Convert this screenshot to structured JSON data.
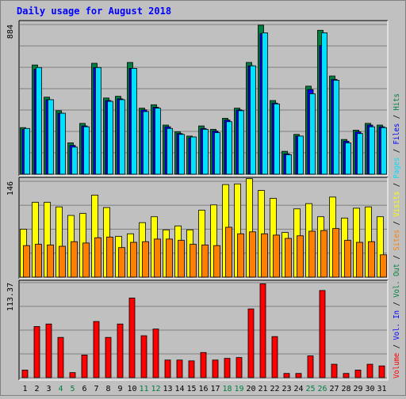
{
  "chart_data": {
    "type": "bar",
    "title": "Daily usage for August 2018",
    "categories": [
      "1",
      "2",
      "3",
      "4",
      "5",
      "6",
      "7",
      "8",
      "9",
      "10",
      "11",
      "12",
      "13",
      "14",
      "15",
      "16",
      "17",
      "18",
      "19",
      "20",
      "21",
      "22",
      "23",
      "24",
      "25",
      "26",
      "27",
      "28",
      "29",
      "30",
      "31"
    ],
    "weekend_days": [
      "4",
      "5",
      "11",
      "12",
      "18",
      "19",
      "25",
      "26"
    ],
    "panels": [
      {
        "id": "top",
        "ymax_label": "884",
        "ymax": 884,
        "series": [
          {
            "name": "Hits",
            "color": "#008040",
            "values": [
              275,
              645,
              455,
              375,
              185,
              300,
              655,
              450,
              460,
              660,
              390,
              410,
              290,
              250,
              225,
              285,
              265,
              330,
              390,
              660,
              880,
              435,
              135,
              235,
              520,
              850,
              580,
              205,
              260,
              300,
              290
            ]
          },
          {
            "name": "Files",
            "color": "#0000ff",
            "values": [
              265,
              620,
              440,
              360,
              170,
              285,
              630,
              435,
              445,
              625,
              380,
              395,
              280,
              240,
              215,
              270,
              255,
              320,
              380,
              640,
              830,
              420,
              120,
              225,
              500,
              760,
              560,
              195,
              250,
              290,
              280
            ]
          },
          {
            "name": "Pages",
            "color": "#00e0ff",
            "values": [
              270,
              630,
              440,
              360,
              160,
              280,
              630,
              430,
              440,
              625,
              370,
              390,
              270,
              235,
              220,
              265,
              245,
              310,
              375,
              640,
              835,
              415,
              115,
              225,
              475,
              835,
              555,
              185,
              240,
              280,
              275
            ]
          }
        ]
      },
      {
        "id": "middle",
        "ymax_label": "146",
        "ymax": 146,
        "series": [
          {
            "name": "Visits",
            "color": "#ffff00",
            "values": [
              73,
              114,
              114,
              107,
              94,
              97,
              125,
              106,
              62,
              66,
              83,
              92,
              72,
              78,
              72,
              102,
              110,
              141,
              142,
              150,
              132,
              120,
              68,
              104,
              112,
              92,
              122,
              90,
              105,
              107,
              92
            ]
          },
          {
            "name": "Sites",
            "color": "#ff8000",
            "values": [
              48,
              50,
              49,
              47,
              54,
              52,
              60,
              61,
              45,
              53,
              54,
              58,
              58,
              56,
              50,
              49,
              48,
              76,
              66,
              69,
              66,
              64,
              59,
              63,
              70,
              71,
              74,
              56,
              53,
              54,
              34
            ]
          }
        ]
      },
      {
        "id": "bottom",
        "ymax_label": "113.37",
        "ymax": 113.37,
        "series": [
          {
            "name": "Volume",
            "color": "#ff0000",
            "values": [
              9,
              61,
              64,
              48,
              6,
              27,
              67,
              48,
              64,
              95,
              50,
              58,
              21,
              21,
              20,
              30,
              21,
              23,
              24,
              82,
              112,
              49,
              5,
              5,
              26,
              104,
              16,
              5,
              9,
              16,
              14
            ]
          }
        ]
      }
    ],
    "side_legend": [
      {
        "text": "Volume",
        "color": "#ff0000"
      },
      {
        "text": " / ",
        "color": "#000000"
      },
      {
        "text": "Vol. In",
        "color": "#0000ff"
      },
      {
        "text": " / ",
        "color": "#000000"
      },
      {
        "text": "Vol. Out",
        "color": "#008040"
      },
      {
        "text": " / ",
        "color": "#000000"
      },
      {
        "text": "Sites",
        "color": "#ff8000"
      },
      {
        "text": " / ",
        "color": "#000000"
      },
      {
        "text": "Visits",
        "color": "#ffff00"
      },
      {
        "text": " / ",
        "color": "#000000"
      },
      {
        "text": "Pages",
        "color": "#00e0ff"
      },
      {
        "text": " / ",
        "color": "#000000"
      },
      {
        "text": "Files",
        "color": "#0000ff"
      },
      {
        "text": " / ",
        "color": "#000000"
      },
      {
        "text": "Hits",
        "color": "#008040"
      }
    ],
    "colors": {
      "title": "#0000ff",
      "weekday_label": "#000000",
      "weekend_label": "#008040",
      "panel_bg": "#c0c0c0",
      "grid": "#808080"
    },
    "grid": true
  }
}
